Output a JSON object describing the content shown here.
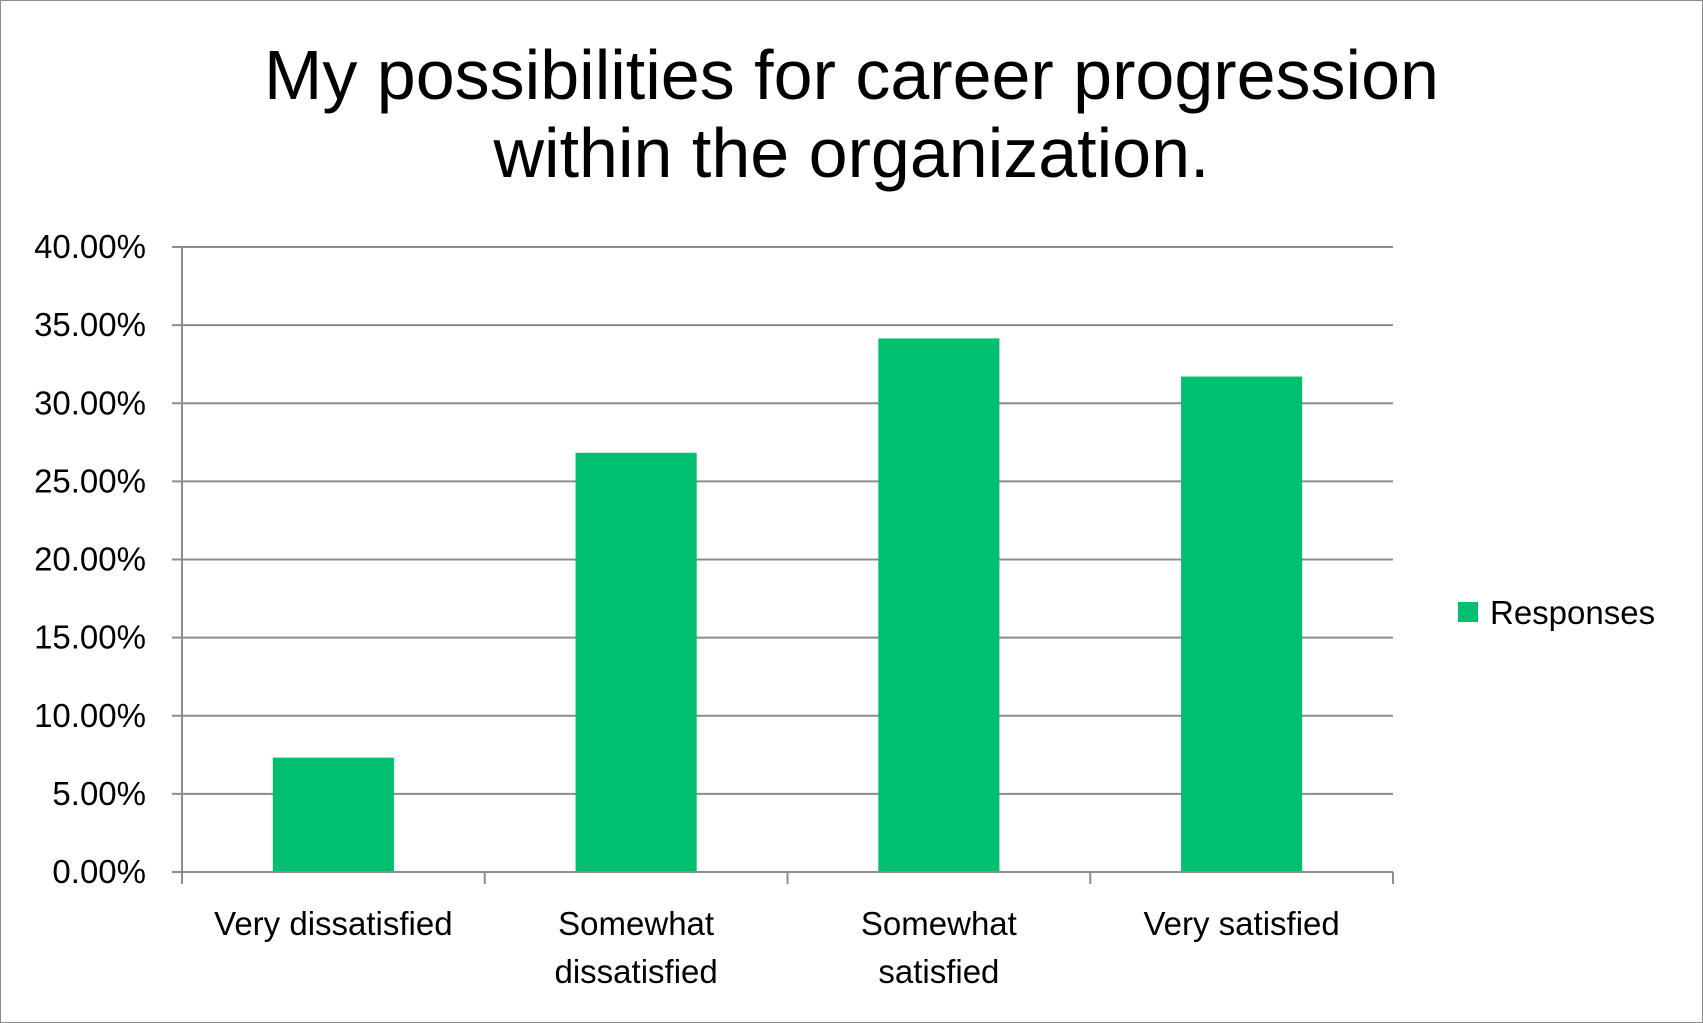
{
  "chart_data": {
    "type": "bar",
    "title_lines": [
      "My possibilities for career progression",
      "within the organization."
    ],
    "categories": [
      [
        "Very dissatisfied"
      ],
      [
        "Somewhat",
        "dissatisfied"
      ],
      [
        "Somewhat",
        "satisfied"
      ],
      [
        "Very satisfied"
      ]
    ],
    "series": [
      {
        "name": "Responses",
        "color": "#00c06f",
        "values": [
          7.32,
          26.83,
          34.15,
          31.71
        ]
      }
    ],
    "ylim": [
      0,
      40
    ],
    "yticks": [
      0,
      5,
      10,
      15,
      20,
      25,
      30,
      35,
      40
    ],
    "ytick_labels": [
      "0.00%",
      "5.00%",
      "10.00%",
      "15.00%",
      "20.00%",
      "25.00%",
      "30.00%",
      "35.00%",
      "40.00%"
    ],
    "grid": true,
    "gridline_color": "#8c8c8c",
    "legend_position": "right"
  }
}
